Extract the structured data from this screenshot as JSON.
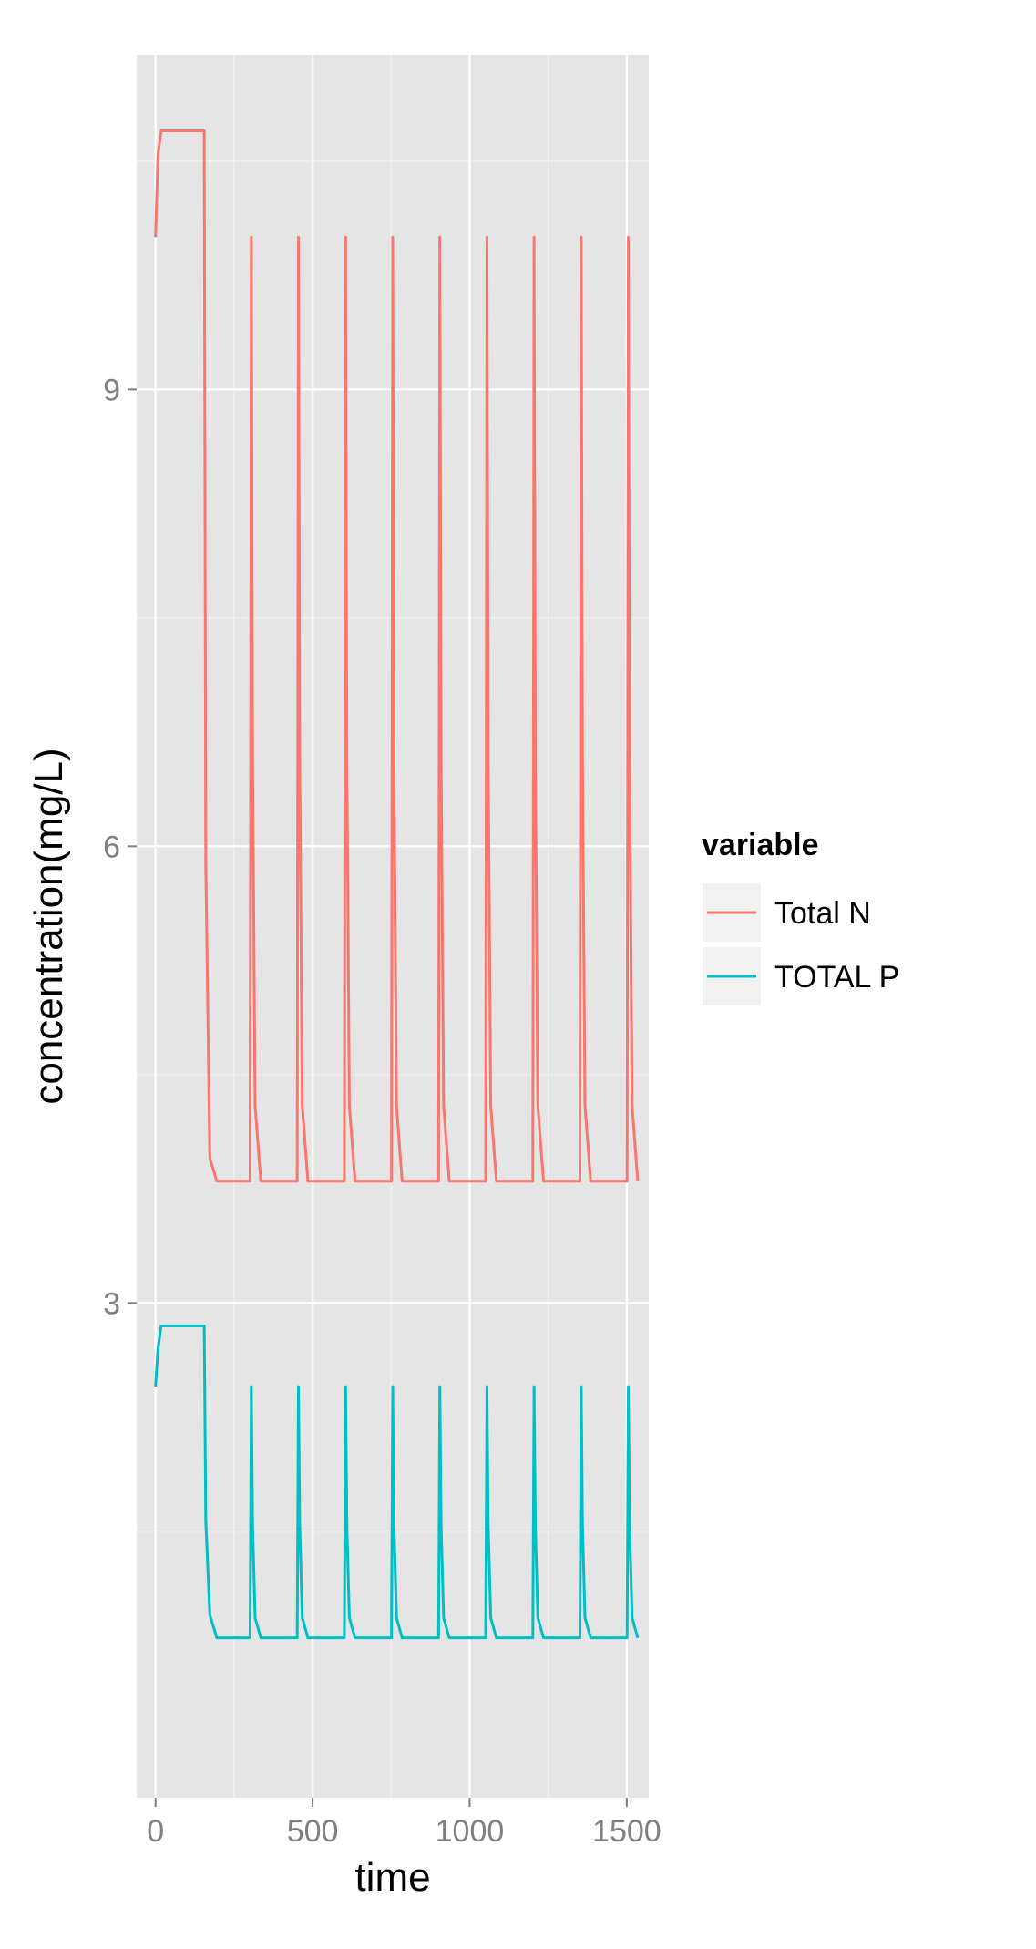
{
  "chart_data": {
    "type": "line",
    "title": "",
    "xlabel": "time",
    "ylabel": "concentration(mg/L)",
    "xlim": [
      -60,
      1570
    ],
    "ylim": [
      -0.25,
      11.2
    ],
    "x_ticks": [
      0,
      500,
      1000,
      1500
    ],
    "x_tick_labels": [
      "0",
      "500",
      "1000",
      "1500"
    ],
    "y_ticks": [
      3,
      6,
      9
    ],
    "y_tick_labels": [
      "3",
      "6",
      "9"
    ],
    "grid": true,
    "legend": {
      "position": "right",
      "title": "variable",
      "entries": [
        "Total N",
        "TOTAL P"
      ]
    },
    "colors": {
      "Total N": "#F8766D",
      "TOTAL P": "#00BFC4",
      "panel_background": "#E5E5E5",
      "grid_major": "#FFFFFF",
      "grid_minor": "#F2F2F2",
      "axis_text": "#7F7F7F"
    },
    "series": [
      {
        "name": "Total N",
        "pattern": {
          "start": 10.0,
          "plateau": 10.7,
          "plateau_until": 155,
          "baseline": 3.8,
          "peak": 10.0,
          "period": 150,
          "first_peak": 305,
          "last_peak": 1510
        }
      },
      {
        "name": "TOTAL P",
        "pattern": {
          "start": 2.45,
          "plateau": 2.85,
          "plateau_until": 155,
          "baseline": 0.8,
          "peak": 2.45,
          "period": 150,
          "first_peak": 305,
          "last_peak": 1510
        }
      }
    ]
  }
}
